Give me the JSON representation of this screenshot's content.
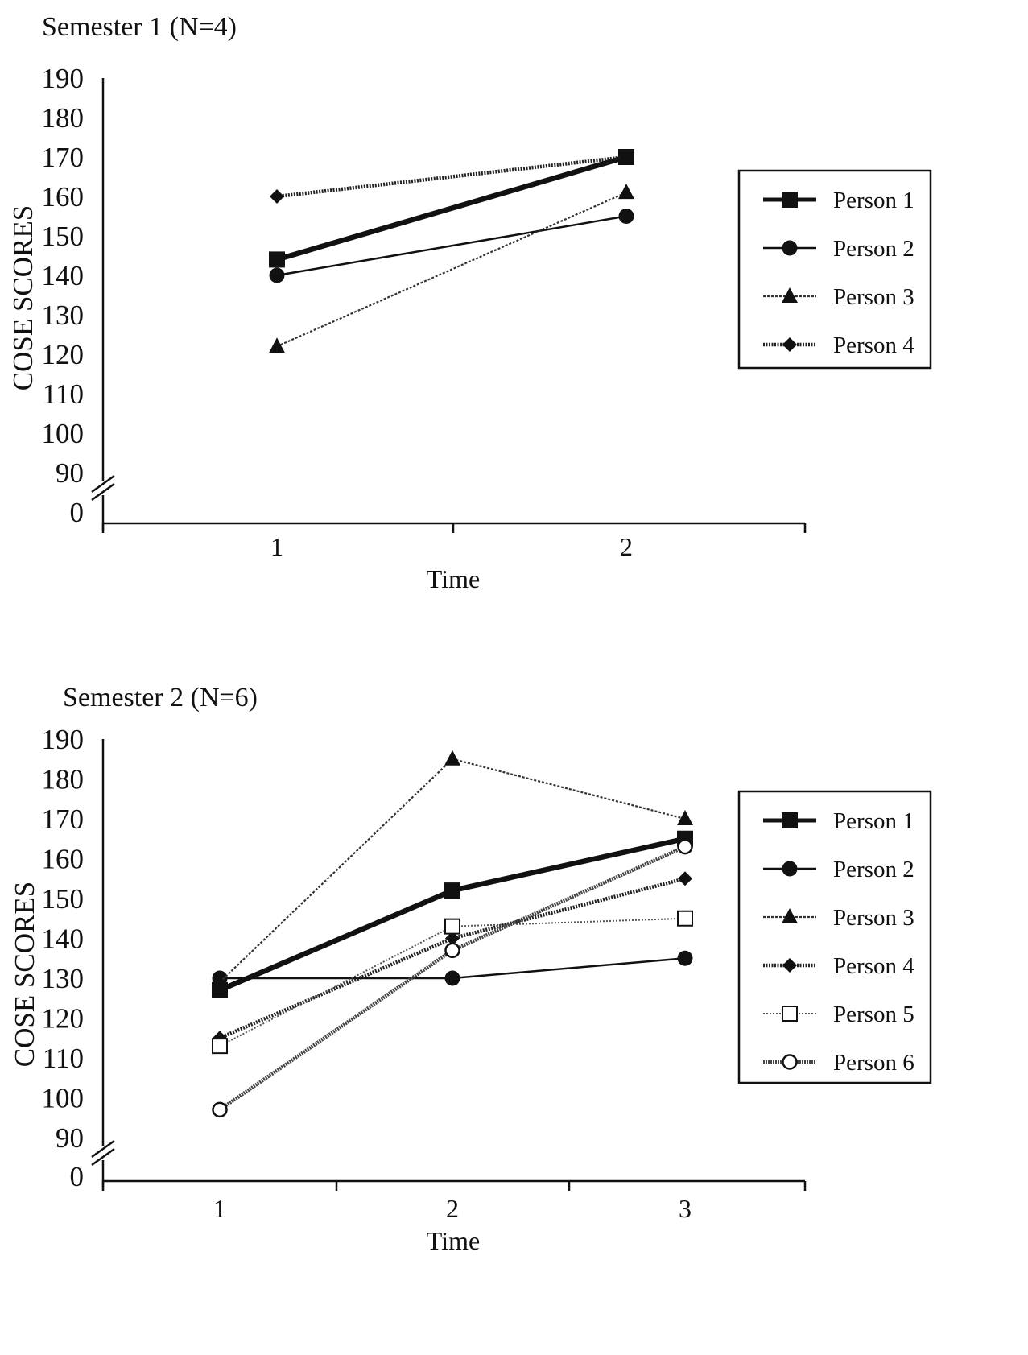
{
  "chart_data": [
    {
      "type": "line",
      "title": "Semester 1 (N=4)",
      "xlabel": "Time",
      "ylabel": "COSE SCORES",
      "x": [
        1,
        2
      ],
      "y_ticks": [
        190,
        180,
        170,
        160,
        150,
        140,
        130,
        120,
        110,
        100,
        90,
        0
      ],
      "ylim": [
        90,
        190
      ],
      "axis_break": true,
      "legend_position": "right",
      "grid": false,
      "series": [
        {
          "name": "Person 1",
          "marker": "square",
          "values": [
            144,
            170
          ]
        },
        {
          "name": "Person 2",
          "marker": "circle",
          "values": [
            140,
            155
          ]
        },
        {
          "name": "Person 3",
          "marker": "triangle",
          "values": [
            122,
            161
          ]
        },
        {
          "name": "Person 4",
          "marker": "diamond",
          "values": [
            160,
            170
          ]
        }
      ]
    },
    {
      "type": "line",
      "title": "Semester 2 (N=6)",
      "xlabel": "Time",
      "ylabel": "COSE SCORES",
      "x": [
        1,
        2,
        3
      ],
      "y_ticks": [
        190,
        180,
        170,
        160,
        150,
        140,
        130,
        120,
        110,
        100,
        90,
        0
      ],
      "ylim": [
        90,
        190
      ],
      "axis_break": true,
      "legend_position": "right",
      "grid": false,
      "series": [
        {
          "name": "Person 1",
          "marker": "square",
          "values": [
            127,
            152,
            165
          ]
        },
        {
          "name": "Person 2",
          "marker": "circle",
          "values": [
            130,
            130,
            135
          ]
        },
        {
          "name": "Person 3",
          "marker": "triangle",
          "values": [
            129,
            185,
            170
          ]
        },
        {
          "name": "Person 4",
          "marker": "diamond",
          "values": [
            115,
            140,
            155
          ]
        },
        {
          "name": "Person 5",
          "marker": "open-square",
          "values": [
            113,
            143,
            145
          ]
        },
        {
          "name": "Person 6",
          "marker": "open-circle",
          "values": [
            97,
            137,
            163
          ]
        }
      ]
    }
  ]
}
